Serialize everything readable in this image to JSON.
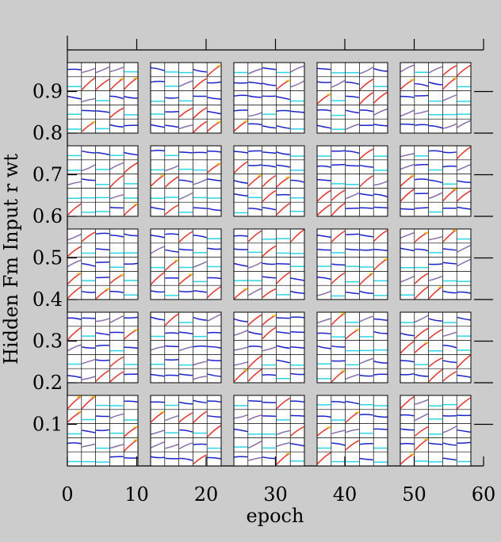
{
  "chart_data": {
    "type": "line",
    "title": "",
    "xlabel": "epoch",
    "ylabel": "Hidden Fm Input r wt",
    "xlim": [
      0,
      60
    ],
    "ylim": [
      0,
      1
    ],
    "x_ticks": [
      "0",
      "10",
      "20",
      "30",
      "40",
      "50",
      "60"
    ],
    "y_ticks": [
      "0.1",
      "0.2",
      "0.3",
      "0.4",
      "0.5",
      "0.6",
      "0.7",
      "0.8",
      "0.9"
    ],
    "grid": "5x5 panels, each a 5x5 sub-grid of small weight-trace plots",
    "colors": {
      "background": "#cccccc",
      "panel": "#ffffff",
      "low_weight": "#1a22cc",
      "flat_weight": "#2bd6e6",
      "mid_weight": "#8a6db0",
      "high_weight": "#e2342a",
      "peak_weight": "#f4c21a"
    }
  }
}
